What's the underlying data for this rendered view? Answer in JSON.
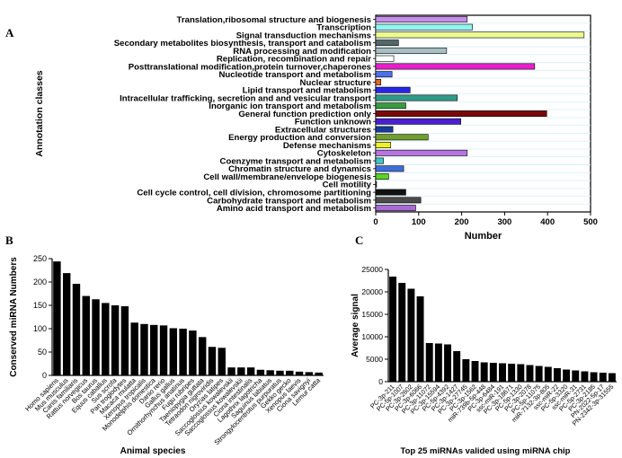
{
  "chart_data": [
    {
      "panel": "A",
      "type": "bar",
      "orientation": "horizontal",
      "xlabel": "Number",
      "ylabel": "Annotation classes",
      "xlim": [
        0,
        500
      ],
      "xticks": [
        0,
        100,
        200,
        300,
        400,
        500
      ],
      "grid": true,
      "categories": [
        "Translation,ribosomal structure and biogenesis",
        "Transcription",
        "Signal transduction mechanisms",
        "Secondary metabolites biosynthesis, transport and catabolism",
        "RNA processing and modification",
        "Replication, recombination and repair",
        "Posttranslational modification,protein turnover,chaperones",
        "Nucleotide transport and metabolism",
        "Nuclear structure",
        "Lipid transport and metabolism",
        "Intracellular trafficking, secretion and  and vesicular transport",
        "Inorganic ion transport and metabolism",
        "General function prediction only",
        "Function unknown",
        "Extracellular structures",
        "Energy production and conversion",
        "Defense mechanisms",
        "Cytoskeleton",
        "Coenzyme transport and metabolism",
        "Chromatin structure and dynamics",
        "Cell wall/membrane/envelope biogenesis",
        "Cell motility",
        "Cell cycle control, cell division, chromosome partitioning",
        "Carbohydrate transport and metabolism",
        "Amino acid transport and metabolism"
      ],
      "values": [
        213,
        225,
        485,
        53,
        165,
        42,
        370,
        38,
        12,
        80,
        190,
        70,
        398,
        198,
        40,
        122,
        35,
        213,
        18,
        65,
        30,
        2,
        70,
        105,
        93
      ],
      "colors": [
        "#c38ee8",
        "#8ff5f1",
        "#ecfa8e",
        "#536869",
        "#a8bfc2",
        "#ffffff",
        "#e91ec9",
        "#4e6fe8",
        "#e26a27",
        "#2a24e6",
        "#2f9b8a",
        "#3a9b3e",
        "#7a0909",
        "#4b1fd0",
        "#173a9b",
        "#6f9e2c",
        "#eef02a",
        "#b874e0",
        "#3fc7c7",
        "#3f6ed8",
        "#5ad228",
        "#2a59a8",
        "#111111",
        "#4a4a4a",
        "#a86bd6"
      ]
    },
    {
      "panel": "B",
      "type": "bar",
      "xlabel": "Animal species",
      "ylabel": "Conserved miRNA Numbers",
      "ylim": [
        0,
        250
      ],
      "yticks": [
        0,
        50,
        100,
        150,
        200,
        250
      ],
      "categories": [
        "Homo sapiens",
        "Mus musculus",
        "Canis familiaris",
        "Rattus norvegicus",
        "Bos taurus",
        "Equus caballus",
        "Sus scrofa",
        "Pan troglodytes",
        "Macaca mulatta",
        "Xenopus tropicalis",
        "Monodelphis domestica",
        "Danio rerio",
        "Gallus gallus",
        "Ornithorhynchus anatinus",
        "Fugu rubripes",
        "Taeniopygia guttata",
        "Tetraodon nigroviridis",
        "Oryzias latipes",
        "Saccoglossus kowalevskii",
        "Saccoglossus kowalevskii",
        "Ciona intestinalis",
        "Lagothrix lagotricha",
        "Saguinus labiatus",
        "Strongylocentrotus purpuratus",
        "Gekko gecko",
        "Xenopus laevis",
        "Ciona savignyi",
        "Lemur catta"
      ],
      "values": [
        244,
        219,
        196,
        170,
        163,
        155,
        150,
        148,
        113,
        110,
        108,
        107,
        101,
        100,
        96,
        82,
        61,
        59,
        17,
        17,
        17,
        12,
        11,
        10,
        10,
        8,
        7,
        6
      ]
    },
    {
      "panel": "C",
      "type": "bar",
      "xlabel": "Top 25 miRNAs valided using miRNA chip",
      "ylabel": "Average signal",
      "ylim": [
        0,
        25000
      ],
      "yticks": [
        0,
        5000,
        10000,
        15000,
        20000,
        25000
      ],
      "categories": [
        "PC-3p-211",
        "PC-5p-1007",
        "PC-3p-2602",
        "PC-3p-6066",
        "PC-3p-11072",
        "PC-3p-15594",
        "PC-5p-4392",
        "PC-3p-1427",
        "PC-3p-27745",
        "PC-3p-1562",
        "miR-739b-5p-448",
        "PC-3p-6484",
        "ssc-miR-191",
        "PC-3p-18671",
        "PC-5p-1330",
        "PC-3p-2078",
        "PC-5p-11075",
        "miR-7132-3p-805",
        "ssc-miR-22",
        "PC-5p-3320",
        "ssc-miR-31",
        "PC-5p-2731",
        "PC-3p-2185",
        "PN-2022-5p-17",
        "PN-2342-3p-31555"
      ],
      "values": [
        23400,
        22000,
        20700,
        19000,
        8600,
        8500,
        8300,
        6800,
        5000,
        4600,
        4300,
        4200,
        4100,
        4000,
        3900,
        3700,
        3500,
        3300,
        3000,
        2700,
        2500,
        2300,
        2100,
        2000,
        1900
      ]
    }
  ]
}
